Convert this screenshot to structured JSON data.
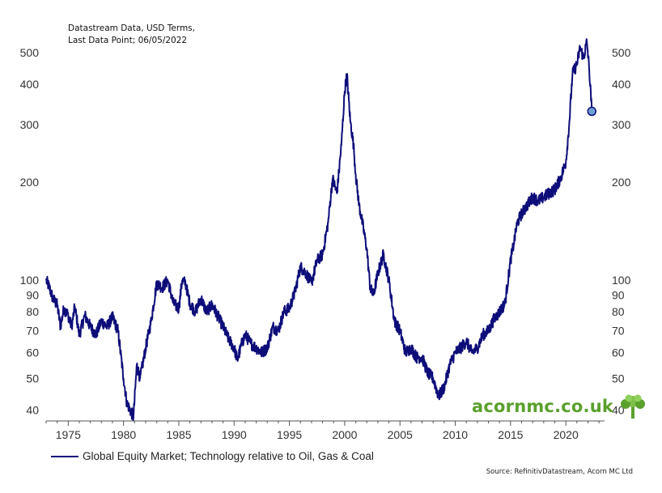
{
  "chart_data": {
    "type": "line",
    "notes": [
      "Datastream Data, USD Terms,",
      "Last Data Point; 06/05/2022"
    ],
    "legend": "Global Equity Market; Technology relative to Oil, Gas & Coal",
    "source": "Source: RefinitivDatastream, Acorn MC Ltd",
    "brand": "acornmc.co.uk",
    "yscale": "log",
    "ylim": [
      37,
      570
    ],
    "xlim": [
      1973.0,
      2023.5
    ],
    "y_ticks": [
      40,
      50,
      60,
      70,
      80,
      90,
      100,
      200,
      300,
      400,
      500
    ],
    "x_ticks": [
      1975,
      1980,
      1985,
      1990,
      1995,
      2000,
      2005,
      2010,
      2015,
      2020
    ],
    "last_point": {
      "x": 2022.35,
      "y": 330
    },
    "series": [
      {
        "name": "Global Equity Market; Technology relative to Oil, Gas & Coal",
        "color": "#0d0d7a",
        "x": [
          1973.0,
          1973.3,
          1973.6,
          1974.0,
          1974.3,
          1974.6,
          1975.0,
          1975.3,
          1975.6,
          1976.0,
          1976.5,
          1977.0,
          1977.5,
          1978.0,
          1978.5,
          1979.0,
          1979.5,
          1980.0,
          1980.3,
          1980.6,
          1980.9,
          1981.2,
          1981.5,
          1982.0,
          1982.5,
          1983.0,
          1983.5,
          1984.0,
          1984.5,
          1985.0,
          1985.3,
          1985.6,
          1986.0,
          1986.5,
          1987.0,
          1987.5,
          1988.0,
          1988.5,
          1989.0,
          1989.5,
          1990.0,
          1990.3,
          1990.7,
          1991.0,
          1991.5,
          1992.0,
          1992.5,
          1993.0,
          1993.5,
          1994.0,
          1994.5,
          1995.0,
          1995.5,
          1996.0,
          1996.5,
          1997.0,
          1997.5,
          1998.0,
          1998.5,
          1998.9,
          1999.3,
          1999.7,
          2000.0,
          2000.2,
          2000.5,
          2000.8,
          2001.0,
          2001.3,
          2001.6,
          2002.0,
          2002.3,
          2002.6,
          2003.0,
          2003.5,
          2004.0,
          2004.5,
          2005.0,
          2005.5,
          2006.0,
          2006.5,
          2007.0,
          2007.5,
          2008.0,
          2008.5,
          2009.0,
          2009.5,
          2010.0,
          2010.5,
          2011.0,
          2011.5,
          2012.0,
          2012.5,
          2013.0,
          2013.5,
          2014.0,
          2014.5,
          2015.0,
          2015.3,
          2015.6,
          2016.0,
          2016.5,
          2017.0,
          2017.5,
          2018.0,
          2018.5,
          2019.0,
          2019.5,
          2020.0,
          2020.3,
          2020.6,
          2021.0,
          2021.3,
          2021.6,
          2021.9,
          2022.1,
          2022.35
        ],
        "values": [
          100,
          95,
          88,
          84,
          72,
          82,
          78,
          72,
          83,
          68,
          78,
          72,
          68,
          75,
          72,
          77,
          70,
          50,
          42,
          40,
          38,
          55,
          50,
          62,
          75,
          98,
          95,
          100,
          85,
          82,
          100,
          98,
          85,
          80,
          88,
          80,
          84,
          78,
          72,
          66,
          62,
          57,
          64,
          68,
          64,
          62,
          60,
          62,
          72,
          70,
          80,
          82,
          92,
          110,
          105,
          98,
          115,
          120,
          150,
          205,
          185,
          260,
          380,
          430,
          310,
          260,
          210,
          170,
          150,
          125,
          95,
          90,
          105,
          120,
          100,
          75,
          70,
          60,
          62,
          58,
          58,
          52,
          50,
          44,
          47,
          55,
          60,
          62,
          65,
          60,
          62,
          68,
          70,
          76,
          80,
          85,
          115,
          130,
          150,
          160,
          170,
          180,
          175,
          180,
          185,
          190,
          205,
          230,
          300,
          430,
          460,
          520,
          480,
          540,
          450,
          330
        ]
      }
    ]
  }
}
